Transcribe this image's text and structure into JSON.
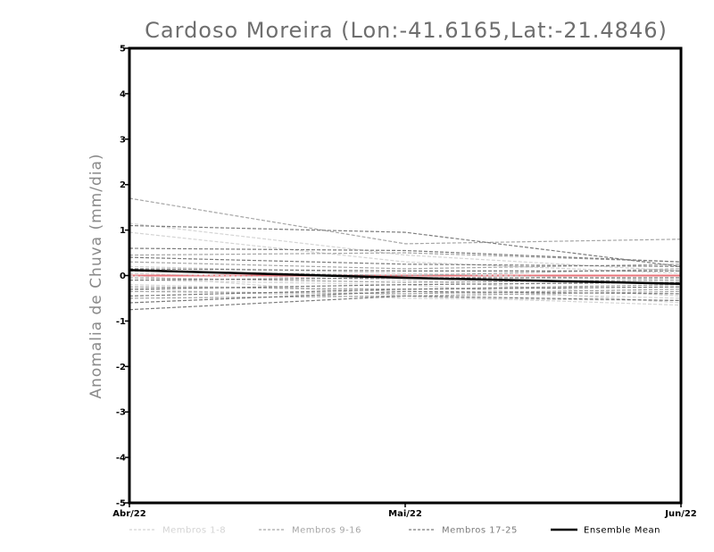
{
  "chart_data": {
    "type": "line",
    "title": "Cardoso Moreira (Lon:-41.6165,Lat:-21.4846)",
    "xlabel": "",
    "ylabel": "Anomalia de Chuva (mm/dia)",
    "categories": [
      "Abr/22",
      "Mai/22",
      "Jun/22"
    ],
    "ylim": [
      -5,
      5
    ],
    "yticks": [
      "5",
      "4",
      "3",
      "2",
      "1",
      "0",
      "-1",
      "-2",
      "-3",
      "-4",
      "-5"
    ],
    "grid": false,
    "legend_placement": "bottom",
    "zero_line_color": "#e8737a",
    "groups": [
      {
        "name": "Membros 1-8",
        "color": "#d4d4d4",
        "style": "dashed",
        "series": [
          [
            1.15,
            0.45,
            0.1
          ],
          [
            0.95,
            0.3,
            0.05
          ],
          [
            0.2,
            0.05,
            -0.1
          ],
          [
            0.05,
            -0.1,
            -0.45
          ],
          [
            -0.1,
            -0.2,
            -0.6
          ],
          [
            -0.2,
            -0.35,
            -0.5
          ],
          [
            0.0,
            -0.45,
            -0.65
          ],
          [
            -0.3,
            -0.5,
            -0.55
          ]
        ]
      },
      {
        "name": "Membros 9-16",
        "color": "#a6a6a6",
        "style": "dashed",
        "series": [
          [
            1.7,
            0.7,
            0.8
          ],
          [
            0.45,
            0.5,
            0.3
          ],
          [
            0.3,
            0.15,
            0.25
          ],
          [
            0.1,
            0.0,
            0.15
          ],
          [
            -0.05,
            -0.15,
            -0.1
          ],
          [
            -0.25,
            -0.3,
            -0.2
          ],
          [
            -0.35,
            -0.4,
            -0.3
          ],
          [
            -0.5,
            -0.45,
            -0.35
          ]
        ]
      },
      {
        "name": "Membros 17-25",
        "color": "#7c7c7c",
        "style": "dashed",
        "series": [
          [
            1.1,
            0.95,
            0.2
          ],
          [
            0.6,
            0.55,
            0.3
          ],
          [
            0.4,
            0.25,
            0.2
          ],
          [
            0.15,
            0.1,
            0.1
          ],
          [
            -0.1,
            -0.05,
            -0.05
          ],
          [
            -0.3,
            -0.2,
            -0.15
          ],
          [
            -0.45,
            -0.3,
            -0.25
          ],
          [
            -0.6,
            -0.35,
            -0.4
          ],
          [
            -0.75,
            -0.45,
            -0.55
          ]
        ]
      }
    ],
    "ensemble_mean": {
      "name": "Ensemble Mean",
      "color": "#000000",
      "values": [
        0.12,
        -0.05,
        -0.18
      ]
    },
    "legend": [
      {
        "label": "Membros 1-8",
        "color": "#d4d4d4",
        "style": "dashed"
      },
      {
        "label": "Membros 9-16",
        "color": "#a6a6a6",
        "style": "dashed"
      },
      {
        "label": "Membros 17-25",
        "color": "#7c7c7c",
        "style": "dashed"
      },
      {
        "label": "Ensemble Mean",
        "color": "#000000",
        "style": "solid"
      }
    ]
  }
}
